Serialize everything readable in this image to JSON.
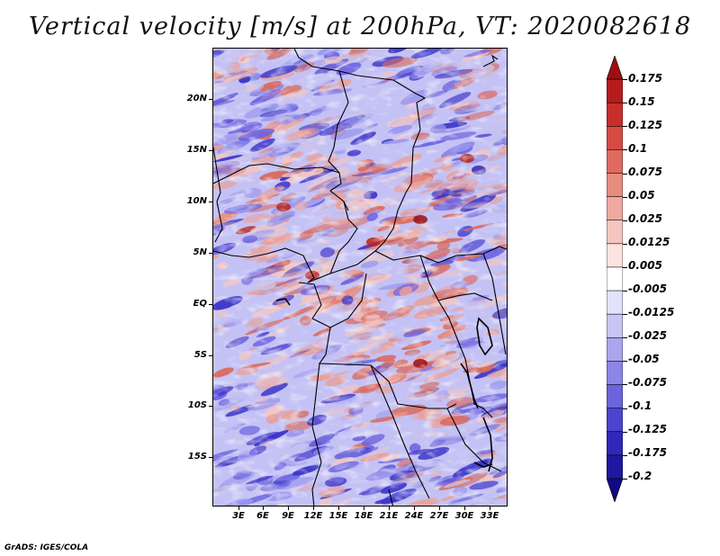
{
  "title": "Vertical velocity [m/s] at 200hPa, VT: 2020082618",
  "map": {
    "lat_labels": [
      "20N",
      "15N",
      "10N",
      "5N",
      "EQ",
      "5S",
      "10S",
      "15S"
    ],
    "lon_labels": [
      "3E",
      "6E",
      "9E",
      "12E",
      "15E",
      "18E",
      "21E",
      "24E",
      "27E",
      "30E",
      "33E"
    ],
    "field_colors": [
      "#3a33c8",
      "#6a63e0",
      "#9a97ee",
      "#c9c8f6",
      "#f2c7c2",
      "#ea9f96",
      "#d96a5e",
      "#b8251c"
    ]
  },
  "colorbar": {
    "levels": [
      "0.175",
      "0.15",
      "0.125",
      "0.1",
      "0.075",
      "0.05",
      "0.025",
      "0.0125",
      "0.005",
      "-0.005",
      "-0.0125",
      "-0.025",
      "-0.05",
      "-0.075",
      "-0.1",
      "-0.125",
      "-0.175",
      "-0.2"
    ],
    "colors": [
      "#9e0f12",
      "#b71c1c",
      "#c82f2a",
      "#d54b43",
      "#df6a5f",
      "#e88c80",
      "#efa9a0",
      "#f5c6bf",
      "#fbe3df",
      "#ffffff",
      "#e3e2fb",
      "#c8c5f4",
      "#aaa6ee",
      "#8a85e6",
      "#6b64dc",
      "#4b44cf",
      "#2f28b8",
      "#1e17a0",
      "#110a80"
    ]
  },
  "credit": "GrADS: IGES/COLA"
}
